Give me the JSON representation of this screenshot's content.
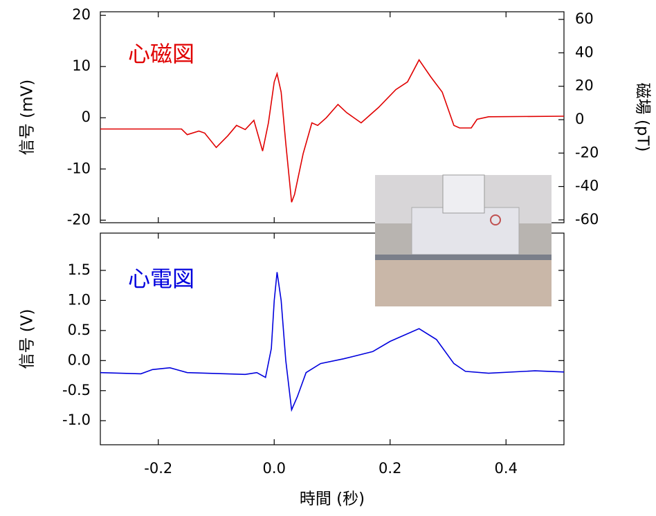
{
  "chart_data": [
    {
      "type": "line",
      "annotation": "心磁図",
      "ylabel": "信号 (mV)",
      "y2label": "磁場 (pT)",
      "x": [
        -0.3,
        -0.16,
        -0.15,
        -0.13,
        -0.12,
        -0.1,
        -0.08,
        -0.065,
        -0.05,
        -0.035,
        -0.02,
        -0.01,
        0.0,
        0.005,
        0.012,
        0.02,
        0.03,
        0.035,
        0.05,
        0.065,
        0.075,
        0.09,
        0.11,
        0.125,
        0.15,
        0.18,
        0.21,
        0.23,
        0.25,
        0.27,
        0.29,
        0.31,
        0.32,
        0.34,
        0.35,
        0.37,
        0.5
      ],
      "series": [
        {
          "color": "#e00000",
          "values": [
            -2.2,
            -2.2,
            -3.3,
            -2.6,
            -3.0,
            -5.8,
            -3.5,
            -1.5,
            -2.3,
            -0.5,
            -6.5,
            -1,
            7,
            8.6,
            5,
            -5,
            -16.5,
            -15,
            -7,
            -1,
            -1.5,
            0,
            2.6,
            1,
            -1,
            2,
            5.5,
            7,
            11.3,
            8,
            5,
            -1.5,
            -2.0,
            -2,
            -0.3,
            0.2,
            0.3
          ]
        }
      ],
      "xlim": [
        -0.3,
        0.5
      ],
      "ylim": [
        -20.5,
        20.7
      ],
      "yticks": [
        -20,
        -10,
        0,
        10,
        20
      ],
      "y2lim": [
        -61.7,
        64.6
      ],
      "y2ticks": [
        -60,
        -40,
        -20,
        0,
        20,
        40,
        60
      ]
    },
    {
      "type": "line",
      "annotation": "心電図",
      "ylabel": "信号 (V)",
      "xlabel": "時間 (秒)",
      "x": [
        -0.3,
        -0.23,
        -0.21,
        -0.18,
        -0.15,
        -0.05,
        -0.03,
        -0.015,
        -0.005,
        0.0,
        0.005,
        0.012,
        0.02,
        0.03,
        0.04,
        0.055,
        0.08,
        0.12,
        0.17,
        0.2,
        0.25,
        0.28,
        0.31,
        0.33,
        0.37,
        0.45,
        0.5
      ],
      "series": [
        {
          "color": "#0000dd",
          "values": [
            -0.2,
            -0.22,
            -0.15,
            -0.12,
            -0.2,
            -0.23,
            -0.2,
            -0.28,
            0.2,
            1.0,
            1.47,
            1.0,
            0.0,
            -0.82,
            -0.6,
            -0.2,
            -0.05,
            0.03,
            0.15,
            0.32,
            0.53,
            0.35,
            -0.05,
            -0.18,
            -0.21,
            -0.17,
            -0.19
          ]
        }
      ],
      "xlim": [
        -0.3,
        0.5
      ],
      "xticks": [
        -0.2,
        {
          "value": 0,
          "label": "0.0"
        },
        0.2,
        0.4
      ],
      "ylim": [
        -1.4,
        2.12
      ],
      "yticks": [
        {
          "value": -1,
          "label": "-1.0"
        },
        -0.5,
        {
          "value": 0,
          "label": "0.0"
        },
        0.5,
        {
          "value": 1,
          "label": "1.0"
        },
        1.5
      ]
    }
  ]
}
